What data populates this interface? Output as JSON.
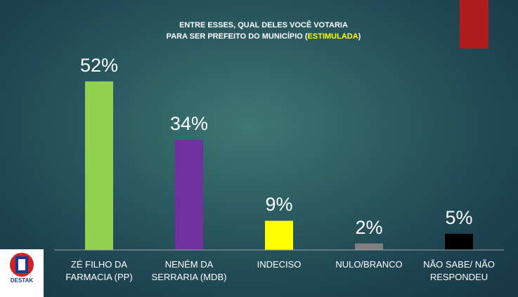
{
  "chart_data": {
    "type": "bar",
    "title": "ENTRE ESSES, QUAL DELES VOCÊ VOTARIA",
    "title_line2": "PARA SER PREFEITO DO MUNICÍPIO (",
    "title_highlight": "ESTIMULADA",
    "title_suffix": ")",
    "categories": [
      "ZÉ FILHO DA FARMACIA (PP)",
      "NENÉM DA SERRARIA  (MDB)",
      "INDECISO",
      "NULO/BRANCO",
      "NÃO SABE/ NÃO RESPONDEU"
    ],
    "values": [
      52,
      34,
      9,
      2,
      5
    ],
    "value_labels": [
      "52%",
      "34%",
      "9%",
      "2%",
      "5%"
    ],
    "colors": [
      "#92d050",
      "#7030a0",
      "#ffff00",
      "#808080",
      "#000000"
    ],
    "ylim": [
      0,
      60
    ]
  },
  "logo": {
    "text": "DESTAK"
  }
}
